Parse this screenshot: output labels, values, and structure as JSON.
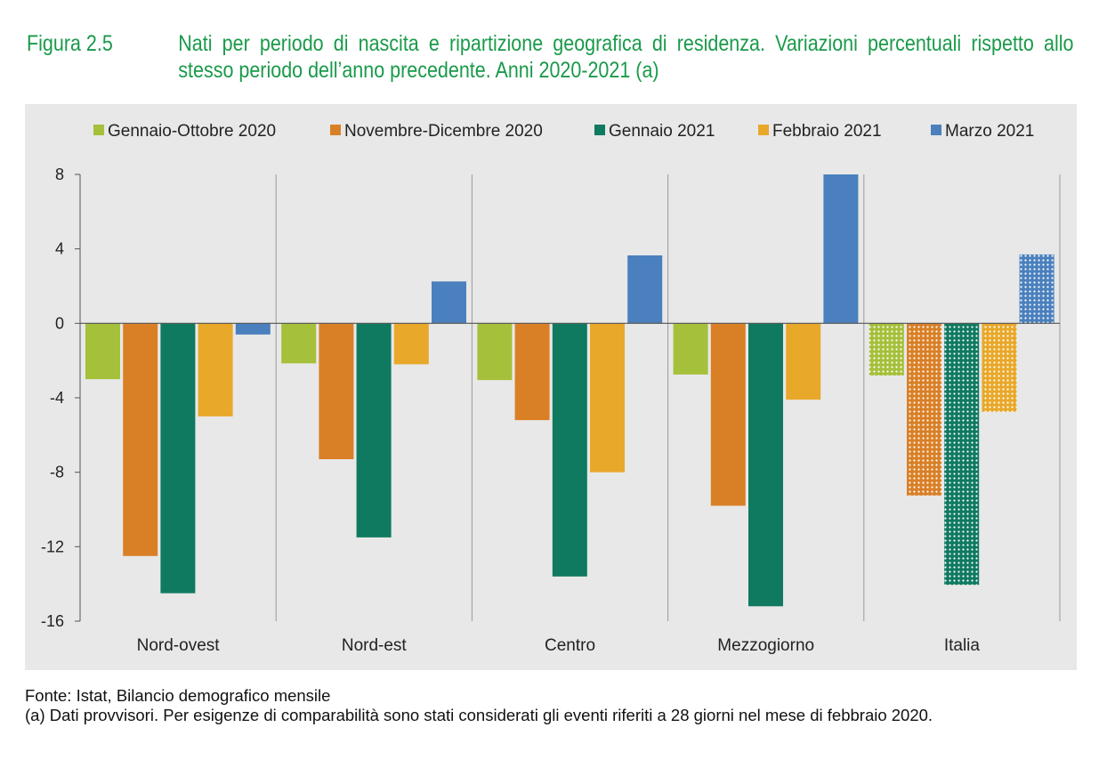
{
  "figure": {
    "label": "Figura 2.5",
    "title": "Nati per periodo di nascita e ripartizione geografica di residenza. Variazioni percentuali rispetto allo stesso periodo dell’anno precedente. Anni 2020-2021",
    "title_note": "(a)"
  },
  "footer": {
    "source": "Fonte: Istat, Bilancio demografico mensile",
    "note": "(a) Dati provvisori. Per esigenze di comparabilità sono stati considerati gli eventi riferiti a 28 giorni nel mese di febbraio 2020."
  },
  "chart_data": {
    "type": "bar",
    "title": "",
    "xlabel": "",
    "ylabel": "",
    "ylim": [
      -16,
      8
    ],
    "yticks": [
      8,
      4,
      0,
      -4,
      -8,
      -12,
      -16
    ],
    "ytick_labels": [
      "8",
      "4",
      "0",
      "-4",
      "-8",
      "-12",
      "-16"
    ],
    "grid": false,
    "legend_position": "top",
    "categories": [
      "Nord-ovest",
      "Nord-est",
      "Centro",
      "Mezzogiorno",
      "Italia"
    ],
    "hatched_categories": [
      "Italia"
    ],
    "series": [
      {
        "name": "Gennaio-Ottobre 2020",
        "color": "#a5c03a",
        "values": [
          -3.0,
          -2.15,
          -3.05,
          -2.75,
          -2.8
        ]
      },
      {
        "name": "Novembre-Dicembre 2020",
        "color": "#d98027",
        "values": [
          -12.5,
          -7.3,
          -5.2,
          -9.8,
          -9.25
        ]
      },
      {
        "name": "Gennaio 2021",
        "color": "#0f7a60",
        "values": [
          -14.5,
          -11.5,
          -13.6,
          -15.2,
          -14.05
        ]
      },
      {
        "name": "Febbraio 2021",
        "color": "#e8a82a",
        "values": [
          -5.0,
          -2.2,
          -8.0,
          -4.1,
          -4.75
        ]
      },
      {
        "name": "Marzo 2021",
        "color": "#4a80bd",
        "values": [
          -0.6,
          2.25,
          3.65,
          8.0,
          3.7
        ]
      }
    ]
  }
}
